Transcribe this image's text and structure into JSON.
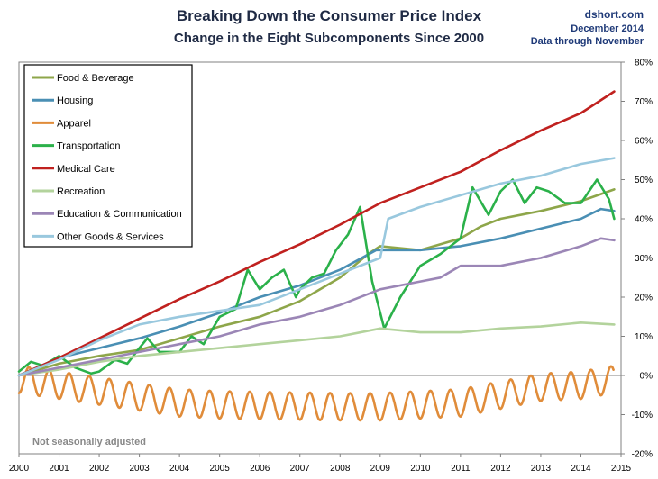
{
  "header": {
    "title": "Breaking Down the Consumer Price Index",
    "subtitle": "Change in the Eight Subcomponents Since 2000",
    "source": "dshort.com",
    "date": "December 2014",
    "data_through": "Data through November"
  },
  "note": "Not seasonally adjusted",
  "chart_data": {
    "type": "line",
    "x_tick_labels": [
      "2000",
      "2001",
      "2002",
      "2003",
      "2004",
      "2005",
      "2006",
      "2007",
      "2008",
      "2009",
      "2010",
      "2011",
      "2012",
      "2013",
      "2014",
      "2015"
    ],
    "y_tick_labels": [
      "80%",
      "70%",
      "60%",
      "50%",
      "40%",
      "30%",
      "20%",
      "10%",
      "0%",
      "-10%",
      "-20%"
    ],
    "xlim": [
      2000,
      2015
    ],
    "ylim": [
      -20,
      80
    ],
    "y_axis_side": "right",
    "grid": false,
    "legend_position": "top-left",
    "series": [
      {
        "name": "Food & Beverage",
        "color": "#8ea64a",
        "points": [
          [
            2000,
            0
          ],
          [
            2001,
            3
          ],
          [
            2002,
            5
          ],
          [
            2003,
            6.5
          ],
          [
            2004,
            9.5
          ],
          [
            2005,
            12.5
          ],
          [
            2006,
            15
          ],
          [
            2007,
            19
          ],
          [
            2008,
            25
          ],
          [
            2008.7,
            31
          ],
          [
            2009,
            33
          ],
          [
            2010,
            32
          ],
          [
            2011,
            35
          ],
          [
            2011.5,
            38
          ],
          [
            2012,
            40
          ],
          [
            2013,
            42
          ],
          [
            2014,
            44.5
          ],
          [
            2014.83,
            47.5
          ]
        ]
      },
      {
        "name": "Housing",
        "color": "#4a8fb4",
        "points": [
          [
            2000,
            0
          ],
          [
            2001,
            4.5
          ],
          [
            2002,
            7
          ],
          [
            2003,
            9.5
          ],
          [
            2004,
            12.5
          ],
          [
            2005,
            16
          ],
          [
            2006,
            20
          ],
          [
            2007,
            23
          ],
          [
            2008,
            27
          ],
          [
            2008.9,
            32
          ],
          [
            2009.5,
            32
          ],
          [
            2010,
            32
          ],
          [
            2011,
            33
          ],
          [
            2012,
            35
          ],
          [
            2013,
            37.5
          ],
          [
            2014,
            40
          ],
          [
            2014.5,
            42.5
          ],
          [
            2014.83,
            42
          ]
        ]
      },
      {
        "name": "Apparel",
        "color": "#e08c3a",
        "seasonal": true,
        "amplitude": 3.5,
        "points": [
          [
            2000,
            -1
          ],
          [
            2002,
            -4
          ],
          [
            2004,
            -7
          ],
          [
            2005,
            -7.5
          ],
          [
            2008,
            -8
          ],
          [
            2009,
            -8
          ],
          [
            2010,
            -7.5
          ],
          [
            2011,
            -7
          ],
          [
            2012,
            -5
          ],
          [
            2013,
            -3
          ],
          [
            2014,
            -2.5
          ],
          [
            2014.83,
            -1
          ]
        ]
      },
      {
        "name": "Transportation",
        "color": "#2bb14a",
        "points": [
          [
            2000,
            1
          ],
          [
            2000.3,
            3.5
          ],
          [
            2000.6,
            2.5
          ],
          [
            2001,
            5
          ],
          [
            2001.4,
            2
          ],
          [
            2001.8,
            0.5
          ],
          [
            2002,
            1
          ],
          [
            2002.4,
            4
          ],
          [
            2002.7,
            3
          ],
          [
            2003,
            7
          ],
          [
            2003.2,
            9.5
          ],
          [
            2003.5,
            6
          ],
          [
            2004,
            6
          ],
          [
            2004.3,
            10
          ],
          [
            2004.6,
            8
          ],
          [
            2005,
            15
          ],
          [
            2005.4,
            17
          ],
          [
            2005.7,
            27
          ],
          [
            2006,
            22
          ],
          [
            2006.3,
            25
          ],
          [
            2006.6,
            27
          ],
          [
            2006.9,
            20
          ],
          [
            2007,
            22
          ],
          [
            2007.3,
            25
          ],
          [
            2007.6,
            26
          ],
          [
            2007.9,
            32
          ],
          [
            2008.2,
            36
          ],
          [
            2008.5,
            43
          ],
          [
            2008.8,
            24
          ],
          [
            2009.1,
            12
          ],
          [
            2009.5,
            20
          ],
          [
            2010,
            28
          ],
          [
            2010.5,
            31
          ],
          [
            2011,
            35
          ],
          [
            2011.3,
            48
          ],
          [
            2011.7,
            41
          ],
          [
            2012,
            47
          ],
          [
            2012.3,
            50
          ],
          [
            2012.6,
            44
          ],
          [
            2012.9,
            48
          ],
          [
            2013.2,
            47
          ],
          [
            2013.6,
            44
          ],
          [
            2014,
            44
          ],
          [
            2014.4,
            50
          ],
          [
            2014.7,
            45
          ],
          [
            2014.83,
            40
          ]
        ]
      },
      {
        "name": "Medical Care",
        "color": "#c0211f",
        "points": [
          [
            2000,
            0
          ],
          [
            2001,
            4.5
          ],
          [
            2002,
            9.5
          ],
          [
            2003,
            14.5
          ],
          [
            2004,
            19.5
          ],
          [
            2005,
            24
          ],
          [
            2006,
            29
          ],
          [
            2007,
            33.5
          ],
          [
            2008,
            38.5
          ],
          [
            2009,
            44
          ],
          [
            2010,
            48
          ],
          [
            2011,
            52
          ],
          [
            2012,
            57.5
          ],
          [
            2013,
            62.5
          ],
          [
            2014,
            67
          ],
          [
            2014.83,
            72.5
          ]
        ]
      },
      {
        "name": "Recreation",
        "color": "#b3d39c",
        "points": [
          [
            2000,
            0
          ],
          [
            2001,
            1.5
          ],
          [
            2002,
            3.5
          ],
          [
            2003,
            5
          ],
          [
            2004,
            6
          ],
          [
            2005,
            7
          ],
          [
            2006,
            8
          ],
          [
            2007,
            9
          ],
          [
            2008,
            10
          ],
          [
            2009,
            12
          ],
          [
            2010,
            11
          ],
          [
            2011,
            11
          ],
          [
            2012,
            12
          ],
          [
            2013,
            12.5
          ],
          [
            2014,
            13.5
          ],
          [
            2014.83,
            13
          ]
        ]
      },
      {
        "name": "Education & Communication",
        "color": "#9b86b6",
        "points": [
          [
            2000,
            0
          ],
          [
            2001,
            2
          ],
          [
            2002,
            4
          ],
          [
            2003,
            6
          ],
          [
            2004,
            8
          ],
          [
            2005,
            10
          ],
          [
            2006,
            13
          ],
          [
            2007,
            15
          ],
          [
            2008,
            18
          ],
          [
            2009,
            22
          ],
          [
            2010,
            24
          ],
          [
            2010.5,
            25
          ],
          [
            2011,
            28
          ],
          [
            2012,
            28
          ],
          [
            2013,
            30
          ],
          [
            2014,
            33
          ],
          [
            2014.5,
            35
          ],
          [
            2014.83,
            34.5
          ]
        ]
      },
      {
        "name": "Other Goods & Services",
        "color": "#99c8de",
        "points": [
          [
            2000,
            0
          ],
          [
            2001,
            4
          ],
          [
            2002,
            9
          ],
          [
            2003,
            13
          ],
          [
            2004,
            15
          ],
          [
            2005,
            16.5
          ],
          [
            2006,
            18
          ],
          [
            2007,
            22
          ],
          [
            2008,
            26
          ],
          [
            2009,
            30
          ],
          [
            2009.2,
            40
          ],
          [
            2010,
            43
          ],
          [
            2011,
            46
          ],
          [
            2012,
            49
          ],
          [
            2013,
            51
          ],
          [
            2014,
            54
          ],
          [
            2014.83,
            55.5
          ]
        ]
      }
    ]
  }
}
